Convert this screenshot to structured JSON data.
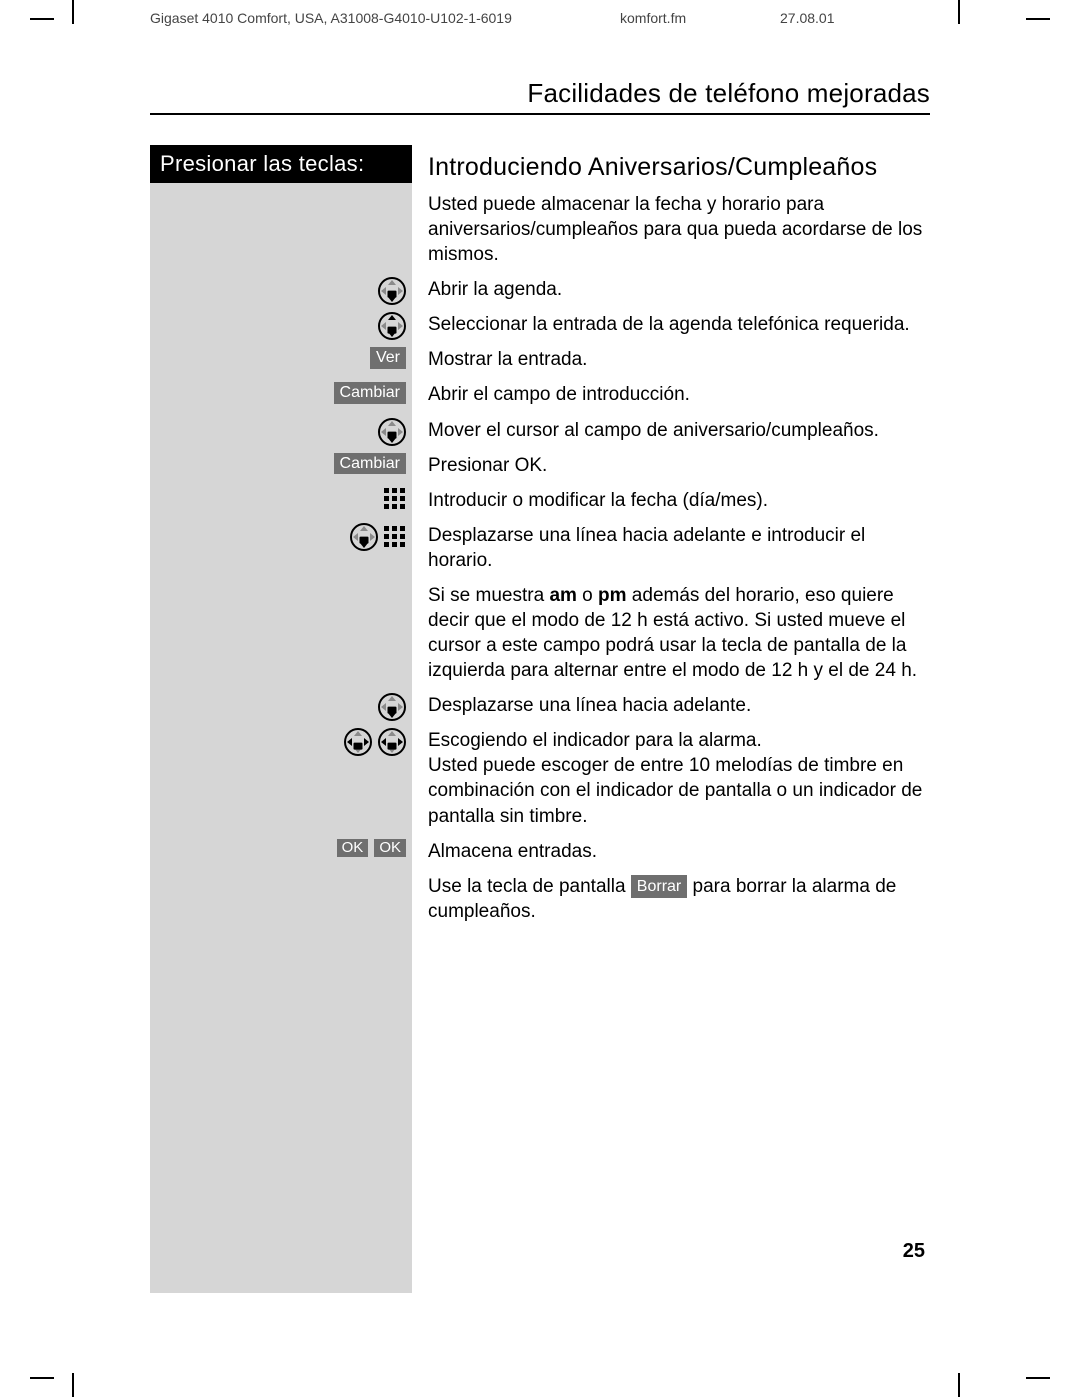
{
  "header": {
    "model": "Gigaset 4010 Comfort, USA, A31008-G4010-U102-1-6019",
    "file": "komfort.fm",
    "date": "27.08.01"
  },
  "section_title": "Facilidades de teléfono mejoradas",
  "keycol_header": "Presionar las teclas:",
  "h2": "Introduciendo Aniversarios/Cumpleaños",
  "intro": "Usted puede almacenar la fecha y horario para aniversarios/cumpleaños para qua pueda acordarse de los mismos.",
  "steps": [
    {
      "icons": [
        {
          "type": "nav",
          "hl": [
            "down"
          ]
        }
      ],
      "text": "Abrir la agenda."
    },
    {
      "icons": [
        {
          "type": "nav",
          "hl": [
            "up",
            "down"
          ]
        }
      ],
      "text": "Seleccionar la entrada de la agenda telefónica requerida."
    },
    {
      "icons": [
        {
          "type": "soft",
          "label": "Ver"
        }
      ],
      "text": "Mostrar la entrada."
    },
    {
      "icons": [
        {
          "type": "soft",
          "label": "Cambiar"
        }
      ],
      "text": "Abrir el campo de introducción."
    },
    {
      "icons": [
        {
          "type": "nav",
          "hl": [
            "down"
          ]
        }
      ],
      "text": "Mover el cursor al campo de aniversario/cumpleaños."
    },
    {
      "icons": [
        {
          "type": "soft",
          "label": "Cambiar"
        }
      ],
      "text": "Presionar OK."
    },
    {
      "icons": [
        {
          "type": "keypad"
        }
      ],
      "text": "Introducir o modificar la fecha (día/mes)."
    },
    {
      "icons": [
        {
          "type": "nav",
          "hl": [
            "down"
          ]
        },
        {
          "type": "keypad"
        }
      ],
      "text": "Desplazarse una línea hacia adelante e introducir el horario."
    },
    {
      "icons": [],
      "rich": true
    },
    {
      "icons": [
        {
          "type": "nav",
          "hl": [
            "down"
          ]
        }
      ],
      "text": "Desplazarse una línea hacia adelante."
    },
    {
      "icons": [
        {
          "type": "nav",
          "hl": [
            "left",
            "right"
          ]
        },
        {
          "type": "nav",
          "hl": [
            "left",
            "right"
          ]
        }
      ],
      "text": "Escogiendo el indicador para la alarma.\nUsted puede escoger de entre 10 melodías de timbre en combinación con el indicador de pantalla o un indicador de pantalla sin timbre."
    },
    {
      "icons": [
        {
          "type": "soft",
          "label": "OK",
          "small": true
        },
        {
          "type": "soft",
          "label": "OK",
          "small": true
        }
      ],
      "text": "Almacena entradas."
    }
  ],
  "rich_step": {
    "pre": "Si se muestra ",
    "b1": "am",
    "mid1": " o ",
    "b2": "pm",
    "post": " además del horario, eso quiere decir que el modo de 12 h está activo. Si usted mueve el cursor a este campo podrá usar la tecla de pantalla de la izquierda para alternar entre el modo de 12 h y el de 24 h."
  },
  "footer_line": {
    "pre": "Use la tecla de pantalla ",
    "key": "Borrar",
    "post": " para borrar la alarma de cumpleaños."
  },
  "page_number": "25",
  "colors": {
    "grey_sidebar": "#d6d6d6",
    "softkey_bg": "#6f6f6f",
    "text": "#000000",
    "header_meta": "#444444"
  },
  "typography": {
    "section_title_pt": 26,
    "h2_pt": 25,
    "body_pt": 19,
    "keycol_header_pt": 22
  }
}
